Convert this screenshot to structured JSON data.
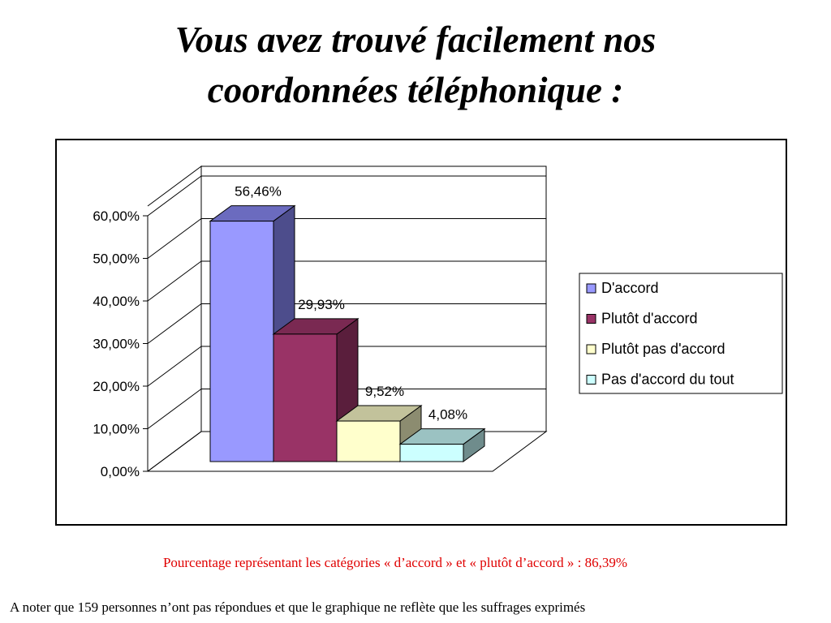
{
  "slide": {
    "title_line1": "Vous avez trouvé facilement nos",
    "title_line2": "coordonnées téléphonique :",
    "note_summary": "Pourcentage représentant les catégories « d’accord » et « plutôt d’accord » : 86,39%",
    "note_footer": "A noter que 159 personnes n’ont pas répondues et que le graphique ne reflète que les suffrages exprimés"
  },
  "colors": {
    "note_summary": "#e00000",
    "gridline": "#000000",
    "background": "#ffffff"
  },
  "chart_data": {
    "type": "bar",
    "style": "3d-column",
    "title": "",
    "xlabel": "",
    "ylabel": "",
    "ylim": [
      0,
      60
    ],
    "yticks": [
      0,
      10,
      20,
      30,
      40,
      50,
      60
    ],
    "ytick_labels": [
      "0,00%",
      "10,00%",
      "20,00%",
      "30,00%",
      "40,00%",
      "50,00%",
      "60,00%"
    ],
    "grid": true,
    "legend_position": "right",
    "series": [
      {
        "name": "D'accord",
        "value": 56.46,
        "label": "56,46%",
        "color": "#9999ff",
        "side_color": "#4d4d8c",
        "top_color": "#6b6bbf"
      },
      {
        "name": "Plutôt d'accord",
        "value": 29.93,
        "label": "29,93%",
        "color": "#993366",
        "side_color": "#5a1e3c",
        "top_color": "#7a2952"
      },
      {
        "name": "Plutôt pas d'accord",
        "value": 9.52,
        "label": "9,52%",
        "color": "#ffffcc",
        "side_color": "#8c8c70",
        "top_color": "#c2c29b"
      },
      {
        "name": "Pas d'accord du tout",
        "value": 4.08,
        "label": "4,08%",
        "color": "#ccffff",
        "side_color": "#6f8c8c",
        "top_color": "#9bc2c2"
      }
    ]
  }
}
